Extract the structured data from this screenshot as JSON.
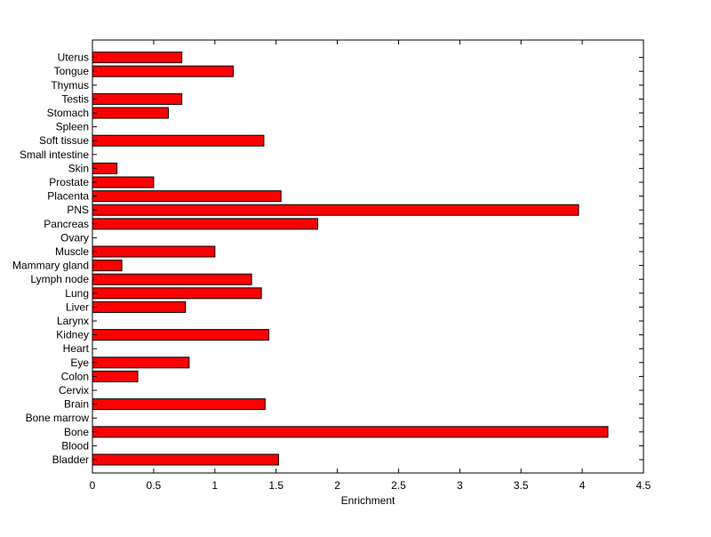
{
  "chart_data": {
    "type": "bar",
    "orientation": "horizontal",
    "title": "",
    "xlabel": "Enrichment",
    "ylabel": "",
    "xlim": [
      0,
      4.5
    ],
    "xticks": [
      0,
      0.5,
      1,
      1.5,
      2,
      2.5,
      3,
      3.5,
      4,
      4.5
    ],
    "xtick_labels": [
      "0",
      "0.5",
      "1",
      "1.5",
      "2",
      "2.5",
      "3",
      "3.5",
      "4",
      "4.5"
    ],
    "grid": false,
    "legend": "none",
    "bar_color": "#ff0000",
    "categories": [
      "Bladder",
      "Blood",
      "Bone",
      "Bone marrow",
      "Brain",
      "Cervix",
      "Colon",
      "Eye",
      "Heart",
      "Kidney",
      "Larynx",
      "Liver",
      "Lung",
      "Lymph node",
      "Mammary gland",
      "Muscle",
      "Ovary",
      "Pancreas",
      "PNS",
      "Placenta",
      "Prostate",
      "Skin",
      "Small intestine",
      "Soft tissue",
      "Spleen",
      "Stomach",
      "Testis",
      "Thymus",
      "Tongue",
      "Uterus"
    ],
    "values": [
      1.52,
      0,
      4.21,
      0,
      1.41,
      0,
      0.37,
      0.79,
      0,
      1.44,
      0,
      0.76,
      1.38,
      1.3,
      0.24,
      1.0,
      0,
      1.84,
      3.97,
      1.54,
      0.5,
      0.2,
      0,
      1.4,
      0,
      0.62,
      0.73,
      0,
      1.15,
      0.73
    ]
  }
}
